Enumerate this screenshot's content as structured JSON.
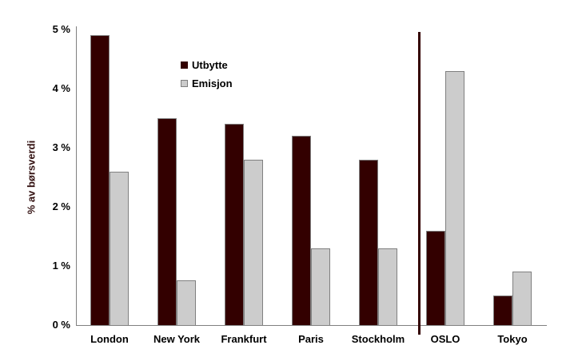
{
  "chart_data": {
    "type": "bar",
    "title": "",
    "ylabel": "% av børsverdi",
    "categories": [
      "London",
      "New York",
      "Frankfurt",
      "Paris",
      "Stockholm",
      "OSLO",
      "Tokyo"
    ],
    "series": [
      {
        "name": "Utbytte",
        "color": "#330000",
        "swatch_border": "#330000",
        "values": [
          4.9,
          3.5,
          3.4,
          3.2,
          2.8,
          1.6,
          0.5
        ]
      },
      {
        "name": "Emisjon",
        "color": "#cccccc",
        "swatch_border": "#808080",
        "values": [
          2.6,
          0.75,
          2.8,
          1.3,
          1.3,
          4.3,
          0.9
        ]
      }
    ],
    "ylim": [
      0,
      5
    ],
    "yticks": [
      {
        "value": 0,
        "label": "0 %"
      },
      {
        "value": 1,
        "label": "1 %"
      },
      {
        "value": 2,
        "label": "2 %"
      },
      {
        "value": 3,
        "label": "3 %"
      },
      {
        "value": 4,
        "label": "4 %"
      },
      {
        "value": 5,
        "label": "5 %"
      }
    ],
    "separator": {
      "after_category": "Stockholm",
      "color": "#330000"
    },
    "legend_position": "inside-upper-left",
    "grid": false,
    "colors": {
      "axis": "#808080",
      "bar_border": "#808080",
      "tick_text": "#000000",
      "ylabel_text": "#331111",
      "background": "#ffffff"
    }
  }
}
